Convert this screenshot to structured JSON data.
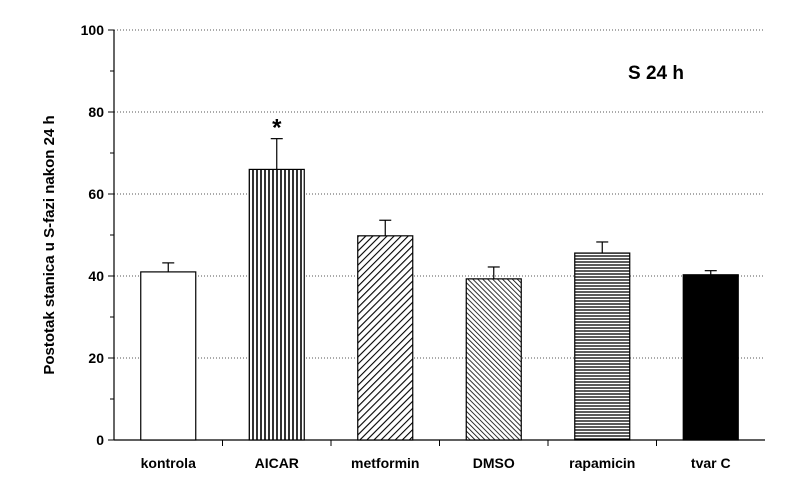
{
  "chart_data": {
    "type": "bar",
    "title": "",
    "annotation": "S 24 h",
    "xlabel": "",
    "ylabel": "Postotak stanica u S-fazi nakon 24 h",
    "ylim": [
      0,
      100
    ],
    "yticks": [
      0,
      20,
      40,
      60,
      80,
      100
    ],
    "grid": "horizontal dotted",
    "categories": [
      "kontrola",
      "AICAR",
      "metformin",
      "DMSO",
      "rapamicin",
      "tvar C"
    ],
    "values": [
      41,
      66,
      49.8,
      39.3,
      45.6,
      40.3
    ],
    "errors": [
      2.2,
      7.5,
      3.8,
      2.9,
      2.7,
      1.0
    ],
    "patterns": [
      "white",
      "vertical",
      "diagonal-wide",
      "diagonal-dense",
      "horizontal",
      "solid-black"
    ],
    "significance": [
      "",
      "*",
      "",
      "",
      "",
      ""
    ]
  }
}
